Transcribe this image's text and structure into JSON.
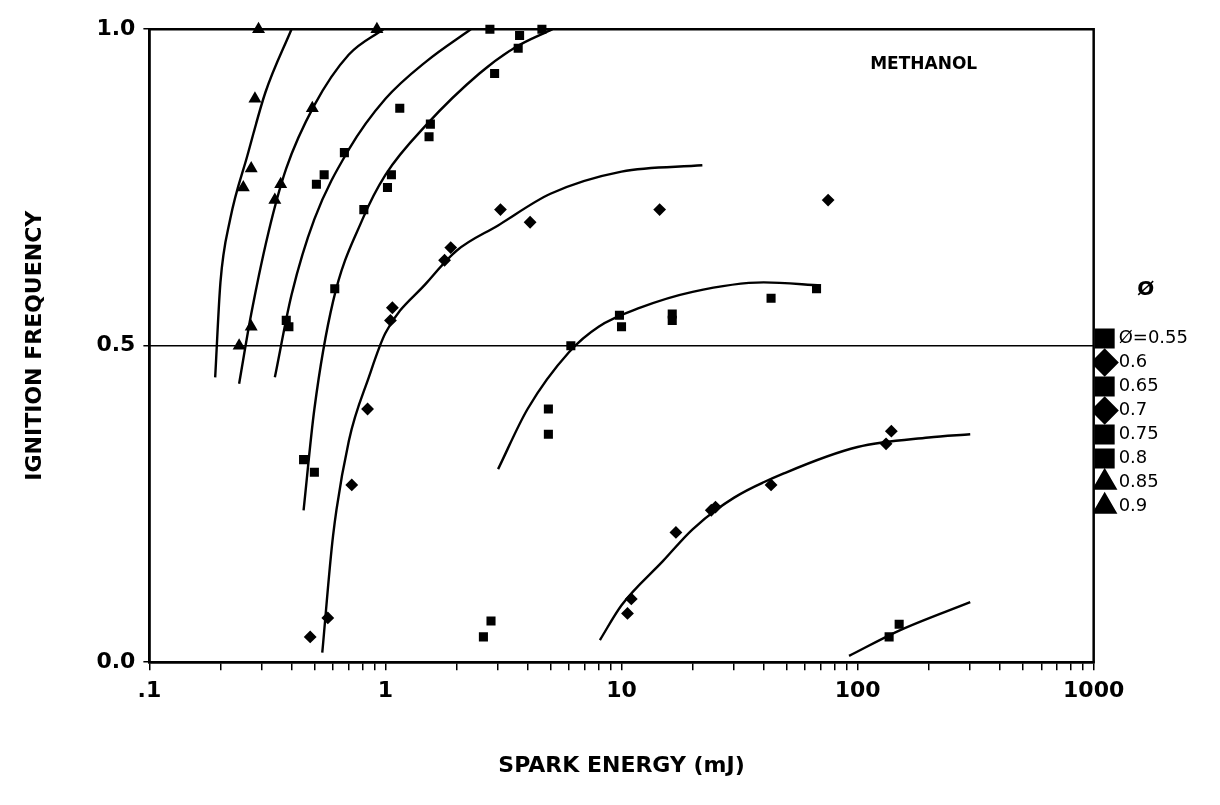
{
  "chart_data": {
    "type": "scatter",
    "xlabel": "SPARK ENERGY (mJ)",
    "ylabel": "IGNITION FREQUENCY",
    "legend_title": "Ø",
    "annotations": [
      "METHANOL"
    ],
    "log": "x",
    "xlim": [
      0.1,
      1000
    ],
    "ylim": [
      0,
      1
    ],
    "xticks": [
      {
        "value": 0.1,
        "label": ".1"
      },
      {
        "value": 0.2,
        "label": null
      },
      {
        "value": 0.3,
        "label": null
      },
      {
        "value": 0.4,
        "label": null
      },
      {
        "value": 0.5,
        "label": null
      },
      {
        "value": 0.6,
        "label": null
      },
      {
        "value": 0.7,
        "label": null
      },
      {
        "value": 0.8,
        "label": null
      },
      {
        "value": 0.9,
        "label": null
      },
      1,
      {
        "value": 2,
        "label": null
      },
      {
        "value": 3,
        "label": null
      },
      {
        "value": 4,
        "label": null
      },
      {
        "value": 5,
        "label": null
      },
      {
        "value": 6,
        "label": null
      },
      {
        "value": 7,
        "label": null
      },
      {
        "value": 8,
        "label": null
      },
      {
        "value": 9,
        "label": null
      },
      10,
      {
        "value": 20,
        "label": null
      },
      {
        "value": 30,
        "label": null
      },
      {
        "value": 40,
        "label": null
      },
      {
        "value": 50,
        "label": null
      },
      {
        "value": 60,
        "label": null
      },
      {
        "value": 70,
        "label": null
      },
      {
        "value": 80,
        "label": null
      },
      {
        "value": 90,
        "label": null
      },
      100,
      {
        "value": 200,
        "label": null
      },
      {
        "value": 300,
        "label": null
      },
      {
        "value": 400,
        "label": null
      },
      {
        "value": 500,
        "label": null
      },
      {
        "value": 600,
        "label": null
      },
      {
        "value": 700,
        "label": null
      },
      {
        "value": 800,
        "label": null
      },
      {
        "value": 900,
        "label": null
      },
      1000
    ],
    "yticks": [
      {
        "value": 0,
        "label": "0.0"
      },
      {
        "value": 0.5,
        "label": "0.5"
      },
      {
        "value": 1,
        "label": "1.0"
      }
    ],
    "grid": false,
    "legend": "right",
    "ref_lines": [
      {
        "axis": "y",
        "value": 0.5,
        "color": "#000000"
      }
    ],
    "series": [
      {
        "name": "Ø=0.55",
        "color": "#000000",
        "marker": "square",
        "x": [
          150,
          136
        ],
        "values": [
          0.06,
          0.04
        ]
      },
      {
        "name": "0.6",
        "color": "#000000",
        "marker": "diamond",
        "x": [
          10.6,
          11,
          17,
          24,
          25,
          43,
          132,
          139
        ],
        "values": [
          0.077,
          0.1,
          0.205,
          0.24,
          0.245,
          0.28,
          0.345,
          0.365
        ]
      },
      {
        "name": "0.65",
        "color": "#000000",
        "marker": "square",
        "x": [
          2.6,
          2.8,
          4.9,
          4.9,
          6.1,
          9.8,
          10,
          16.4,
          16.4,
          43,
          67
        ],
        "values": [
          0.04,
          0.065,
          0.36,
          0.4,
          0.5,
          0.548,
          0.53,
          0.55,
          0.54,
          0.575,
          0.59
        ]
      },
      {
        "name": "0.7",
        "color": "#000000",
        "marker": "diamond",
        "x": [
          0.48,
          0.57,
          0.72,
          0.84,
          1.05,
          1.07,
          1.78,
          1.89,
          3.07,
          4.1,
          14.5,
          75
        ],
        "values": [
          0.04,
          0.07,
          0.28,
          0.4,
          0.54,
          0.56,
          0.635,
          0.655,
          0.715,
          0.695,
          0.715,
          0.73
        ]
      },
      {
        "name": "0.75",
        "color": "#000000",
        "marker": "square",
        "x": [
          0.45,
          0.5,
          0.61,
          0.81,
          1.02,
          1.06,
          1.53,
          1.55,
          2.9,
          3.65,
          3.7,
          4.6
        ],
        "values": [
          0.32,
          0.3,
          0.59,
          0.715,
          0.75,
          0.77,
          0.83,
          0.85,
          0.93,
          0.97,
          0.99,
          1.0
        ]
      },
      {
        "name": "0.8",
        "color": "#000000",
        "marker": "square",
        "x": [
          0.38,
          0.39,
          0.51,
          0.55,
          0.67,
          1.15,
          2.77
        ],
        "values": [
          0.54,
          0.53,
          0.755,
          0.77,
          0.805,
          0.875,
          1.0
        ]
      },
      {
        "name": "0.85",
        "color": "#000000",
        "marker": "triangle",
        "x": [
          0.24,
          0.27,
          0.34,
          0.36,
          0.49,
          0.92
        ],
        "values": [
          0.5,
          0.53,
          0.73,
          0.755,
          0.875,
          1.0
        ]
      },
      {
        "name": "0.9",
        "color": "#000000",
        "marker": "triangle",
        "x": [
          0.25,
          0.27,
          0.28,
          0.29
        ],
        "values": [
          0.75,
          0.78,
          0.89,
          1.0
        ]
      },
      {
        "type": "line",
        "color": "#000000",
        "marker": "none",
        "x": [
          0.19,
          0.2,
          0.22,
          0.26,
          0.31,
          0.4
        ],
        "values": [
          0.45,
          0.6,
          0.7,
          0.8,
          0.9,
          1.0
        ]
      },
      {
        "type": "line",
        "color": "#000000",
        "marker": "none",
        "x": [
          0.24,
          0.27,
          0.32,
          0.38,
          0.5,
          0.7,
          0.98
        ],
        "values": [
          0.44,
          0.55,
          0.68,
          0.78,
          0.88,
          0.96,
          1.0
        ]
      },
      {
        "type": "line",
        "color": "#000000",
        "marker": "none",
        "x": [
          0.34,
          0.4,
          0.5,
          0.7,
          1,
          1.5,
          2.3
        ],
        "values": [
          0.45,
          0.58,
          0.7,
          0.81,
          0.89,
          0.95,
          1.0
        ]
      },
      {
        "type": "line",
        "color": "#000000",
        "marker": "none",
        "x": [
          0.45,
          0.5,
          0.6,
          0.8,
          1,
          1.5,
          2.5,
          3.5,
          5.1
        ],
        "values": [
          0.24,
          0.4,
          0.57,
          0.7,
          0.77,
          0.85,
          0.93,
          0.97,
          1.0
        ]
      },
      {
        "type": "line",
        "color": "#000000",
        "marker": "none",
        "x": [
          0.54,
          0.6,
          0.7,
          0.85,
          1,
          1.5,
          2,
          3,
          5,
          10,
          22
        ],
        "values": [
          0.015,
          0.2,
          0.35,
          0.45,
          0.52,
          0.6,
          0.65,
          0.69,
          0.74,
          0.775,
          0.785
        ]
      },
      {
        "type": "line",
        "color": "#000000",
        "marker": "none",
        "x": [
          3,
          4,
          6,
          8,
          12,
          20,
          40,
          70
        ],
        "values": [
          0.305,
          0.4,
          0.49,
          0.53,
          0.56,
          0.585,
          0.6,
          0.595
        ]
      },
      {
        "type": "line",
        "color": "#000000",
        "marker": "none",
        "x": [
          8.1,
          10,
          15,
          20,
          30,
          50,
          100,
          200,
          300
        ],
        "values": [
          0.035,
          0.09,
          0.16,
          0.21,
          0.26,
          0.3,
          0.34,
          0.355,
          0.36
        ]
      },
      {
        "type": "line",
        "color": "#000000",
        "marker": "none",
        "x": [
          92,
          150,
          300
        ],
        "values": [
          0.01,
          0.05,
          0.095
        ]
      }
    ]
  }
}
